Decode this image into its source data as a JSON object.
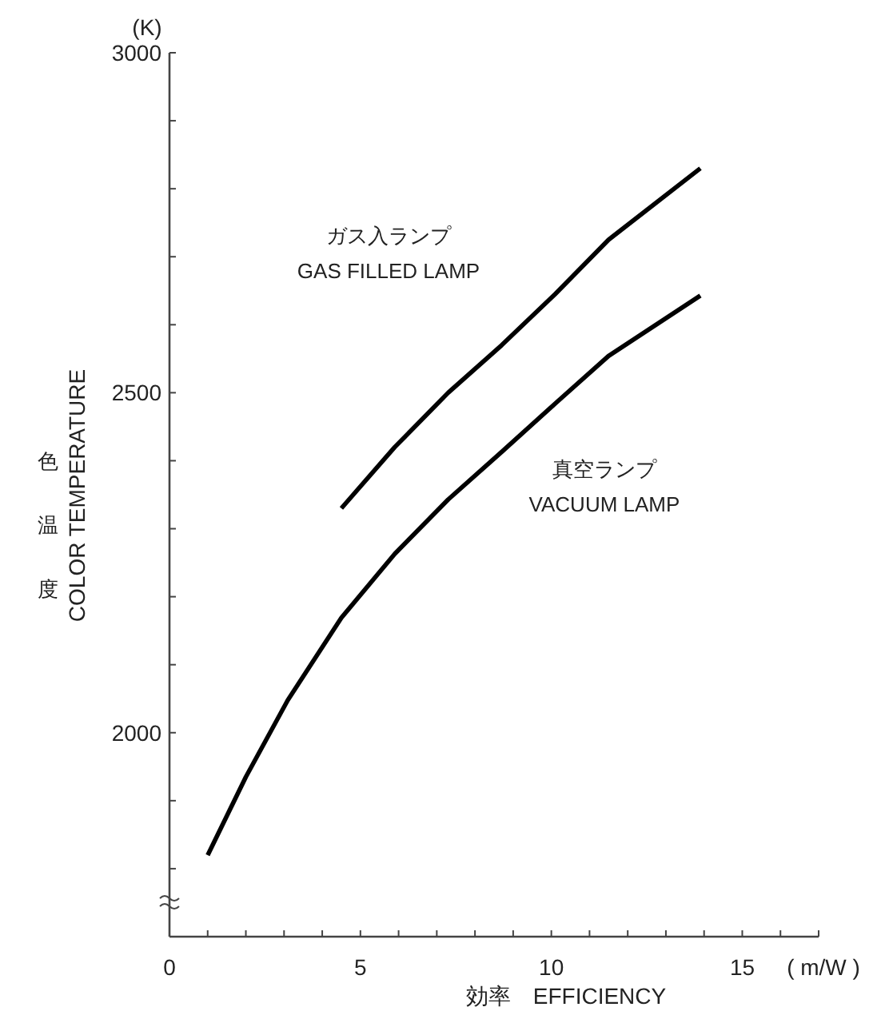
{
  "chart_data": {
    "type": "line",
    "xlabel": "効率　EFFICIENCY",
    "ylabel": "色温度\nCOLOR TEMPERATURE",
    "annotations": [
      "(K)",
      "( m/W )"
    ],
    "xlim": [
      0,
      17
    ],
    "ylim": [
      1700,
      3000
    ],
    "xticks": [
      0,
      {
        "value": 1,
        "label": null
      },
      {
        "value": 2,
        "label": null
      },
      {
        "value": 3,
        "label": null
      },
      {
        "value": 4,
        "label": null
      },
      5,
      {
        "value": 6,
        "label": null
      },
      {
        "value": 7,
        "label": null
      },
      {
        "value": 8,
        "label": null
      },
      {
        "value": 9,
        "label": null
      },
      10,
      {
        "value": 11,
        "label": null
      },
      {
        "value": 12,
        "label": null
      },
      {
        "value": 13,
        "label": null
      },
      {
        "value": 14,
        "label": null
      },
      15,
      {
        "value": 16,
        "label": null
      },
      {
        "value": 17,
        "label": null
      }
    ],
    "yticks": [
      {
        "value": 1800,
        "label": null
      },
      {
        "value": 1900,
        "label": null
      },
      2000,
      {
        "value": 2100,
        "label": null
      },
      {
        "value": 2200,
        "label": null
      },
      {
        "value": 2300,
        "label": null
      },
      {
        "value": 2400,
        "label": null
      },
      2500,
      {
        "value": 2600,
        "label": null
      },
      {
        "value": 2700,
        "label": null
      },
      {
        "value": 2800,
        "label": null
      },
      {
        "value": 2900,
        "label": null
      },
      3000
    ],
    "grid": false,
    "legend": false,
    "marker": "none",
    "line_style": "solid",
    "series": [
      {
        "name": "ガス入ランプ\nGAS FILLED LAMP",
        "color": "#000000",
        "x": [
          4.5,
          5.9,
          7.3,
          8.7,
          10.1,
          11.5,
          13.9
        ],
        "values": [
          2330,
          2420,
          2500,
          2570,
          2645,
          2725,
          2830
        ]
      },
      {
        "name": "真空ランプ\nVACUUM LAMP",
        "color": "#000000",
        "x": [
          1.0,
          2.0,
          3.1,
          4.5,
          5.9,
          7.3,
          8.7,
          10.1,
          11.5,
          13.9
        ],
        "values": [
          1820,
          1935,
          2048,
          2169,
          2263,
          2343,
          2413,
          2484,
          2554,
          2643
        ]
      }
    ]
  }
}
